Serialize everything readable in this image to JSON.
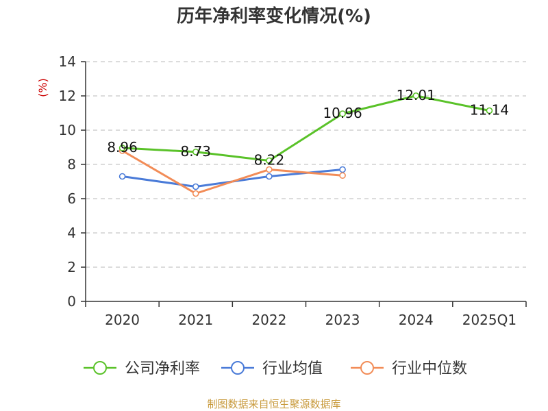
{
  "chart_data": {
    "type": "line",
    "title": "历年净利率变化情况(%)",
    "ylabel": "(%)",
    "xlabel": "",
    "categories": [
      "2020",
      "2021",
      "2022",
      "2023",
      "2024",
      "2025Q1"
    ],
    "ylim": [
      0,
      14
    ],
    "yticks": [
      0,
      2,
      4,
      6,
      8,
      10,
      12,
      14
    ],
    "grid": true,
    "legend_position": "bottom",
    "series": [
      {
        "name": "公司净利率",
        "color": "#5ac229",
        "values": [
          8.96,
          8.73,
          8.22,
          10.96,
          12.01,
          11.14
        ],
        "labels": [
          "8.96",
          "8.73",
          "8.22",
          "10.96",
          "12.01",
          "11.14"
        ]
      },
      {
        "name": "行业均值",
        "color": "#4a7bd8",
        "values": [
          7.3,
          6.7,
          7.3,
          7.7,
          null,
          null
        ]
      },
      {
        "name": "行业中位数",
        "color": "#f28c57",
        "values": [
          8.8,
          6.3,
          7.7,
          7.35,
          null,
          null
        ]
      }
    ],
    "source": "制图数据来自恒生聚源数据库"
  }
}
